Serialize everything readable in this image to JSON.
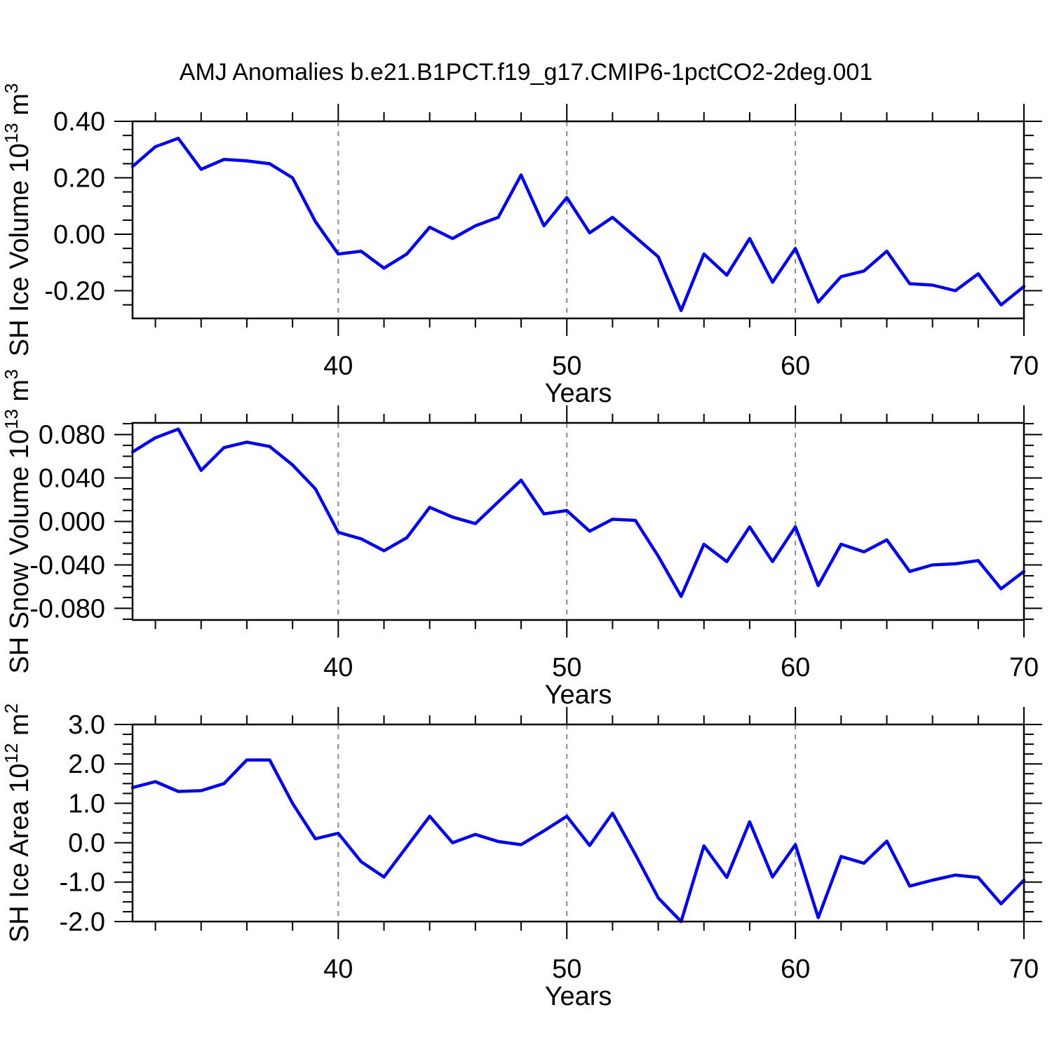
{
  "title": "AMJ Anomalies b.e21.B1PCT.f19_g17.CMIP6-1pctCO2-2deg.001",
  "chart_data": {
    "type": "line",
    "x_label": "Years",
    "x_range": [
      31,
      70
    ],
    "x": [
      31,
      32,
      33,
      34,
      35,
      36,
      37,
      38,
      39,
      40,
      41,
      42,
      43,
      44,
      45,
      46,
      47,
      48,
      49,
      50,
      51,
      52,
      53,
      54,
      55,
      56,
      57,
      58,
      59,
      60,
      61,
      62,
      63,
      64,
      65,
      66,
      67,
      68,
      69,
      70
    ],
    "x_major_ticks": [
      40,
      50,
      60,
      70
    ],
    "x_major_tick_labels": [
      "40",
      "50",
      "60",
      "70"
    ],
    "x_minor_tick_step": 2,
    "gridlines_x": [
      40,
      50,
      60
    ],
    "line_color": "#0202e8",
    "gridline_color": "#8a8a8a",
    "frame_color": "#000000",
    "panels": [
      {
        "id": "sh-ice-volume",
        "ylabel_plain": "SH Ice Volume 10^13 m^3",
        "ylabel_segments": [
          {
            "t": "SH Ice Volume 10",
            "sup": false
          },
          {
            "t": "13",
            "sup": true
          },
          {
            "t": " m",
            "sup": false
          },
          {
            "t": "3",
            "sup": true
          }
        ],
        "ylim": [
          -0.298,
          0.4
        ],
        "ymajor_ticks": [
          0.4,
          0.2,
          0.0,
          -0.2
        ],
        "ymajor_labels": [
          "0.40",
          "0.20",
          "0.00",
          "-0.20"
        ],
        "yminor_step": 0.05,
        "values": [
          0.24,
          0.31,
          0.34,
          0.23,
          0.265,
          0.26,
          0.25,
          0.2,
          0.045,
          -0.07,
          -0.06,
          -0.12,
          -0.07,
          0.025,
          -0.015,
          0.03,
          0.06,
          0.21,
          0.03,
          0.13,
          0.005,
          0.06,
          -0.01,
          -0.08,
          -0.27,
          -0.07,
          -0.145,
          -0.015,
          -0.17,
          -0.05,
          -0.24,
          -0.15,
          -0.13,
          -0.06,
          -0.175,
          -0.18,
          -0.2,
          -0.14,
          -0.25,
          -0.185
        ]
      },
      {
        "id": "sh-snow-volume",
        "ylabel_plain": "SH Snow Volume 10^13 m^3",
        "ylabel_segments": [
          {
            "t": "SH Snow Volume 10",
            "sup": false
          },
          {
            "t": "13",
            "sup": true
          },
          {
            "t": " m",
            "sup": false
          },
          {
            "t": "3",
            "sup": true
          }
        ],
        "ylim": [
          -0.0907,
          0.0907
        ],
        "ymajor_ticks": [
          0.08,
          0.04,
          0.0,
          -0.04,
          -0.08
        ],
        "ymajor_labels": [
          "0.080",
          "0.040",
          "0.000",
          "-0.040",
          "-0.080"
        ],
        "yminor_step": 0.01,
        "values": [
          0.064,
          0.077,
          0.085,
          0.047,
          0.068,
          0.073,
          0.069,
          0.052,
          0.03,
          -0.01,
          -0.016,
          -0.027,
          -0.015,
          0.013,
          0.004,
          -0.002,
          0.018,
          0.038,
          0.007,
          0.01,
          -0.009,
          0.002,
          0.001,
          -0.032,
          -0.069,
          -0.021,
          -0.037,
          -0.005,
          -0.037,
          -0.005,
          -0.059,
          -0.021,
          -0.028,
          -0.017,
          -0.046,
          -0.04,
          -0.039,
          -0.036,
          -0.062,
          -0.046
        ]
      },
      {
        "id": "sh-ice-area",
        "ylabel_plain": "SH Ice Area 10^12 m^2",
        "ylabel_segments": [
          {
            "t": "SH Ice Area 10",
            "sup": false
          },
          {
            "t": "12",
            "sup": true
          },
          {
            "t": " m",
            "sup": false
          },
          {
            "t": "2",
            "sup": true
          }
        ],
        "ylim": [
          -2.0,
          3.0
        ],
        "ymajor_ticks": [
          3.0,
          2.0,
          1.0,
          0.0,
          -1.0,
          -2.0
        ],
        "ymajor_labels": [
          "3.0",
          "2.0",
          "1.0",
          "0.0",
          "-1.0",
          "-2.0"
        ],
        "yminor_step": 0.25,
        "values": [
          1.4,
          1.55,
          1.3,
          1.32,
          1.5,
          2.1,
          2.1,
          1.0,
          0.1,
          0.24,
          -0.48,
          -0.87,
          -0.1,
          0.67,
          0.0,
          0.21,
          0.03,
          -0.05,
          0.3,
          0.67,
          -0.07,
          0.75,
          -0.3,
          -1.4,
          -2.0,
          -0.08,
          -0.88,
          0.53,
          -0.87,
          -0.05,
          -1.9,
          -0.35,
          -0.52,
          0.04,
          -1.1,
          -0.95,
          -0.82,
          -0.88,
          -1.55,
          -0.95
        ]
      }
    ]
  }
}
